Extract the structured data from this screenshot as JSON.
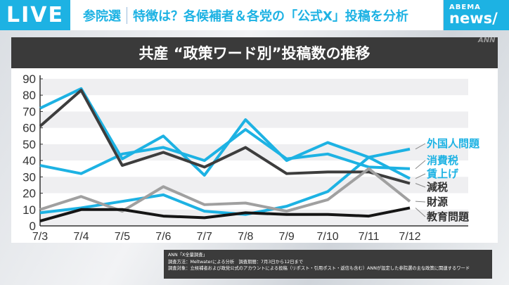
{
  "header": {
    "live": "LIVE",
    "headline_a": "参院選",
    "headline_b": "特徴は？各候補者＆各党の「公式X」投稿を分析",
    "logo_top": "ABEMA",
    "logo_bottom": "news/",
    "watermark": "ANN"
  },
  "chart_data": {
    "type": "line",
    "title": "共産 “政策ワード別”投稿数の推移",
    "categories": [
      "7/3",
      "7/4",
      "7/5",
      "7/6",
      "7/7",
      "7/8",
      "7/9",
      "7/10",
      "7/11",
      "7/12"
    ],
    "ylim": [
      0,
      90
    ],
    "yticks": [
      "0",
      "10",
      "20",
      "30",
      "40",
      "50",
      "60",
      "70",
      "80",
      "90"
    ],
    "grid": "horizontal bands",
    "legend": "right, labels at line ends",
    "series": [
      {
        "name": "外国人問題",
        "color": "#1db2e3",
        "values": [
          8,
          11,
          15,
          19,
          9,
          7,
          12,
          21,
          42,
          47
        ]
      },
      {
        "name": "消費税",
        "color": "#1db2e3",
        "values": [
          37,
          32,
          44,
          48,
          40,
          59,
          41,
          44,
          36,
          35
        ]
      },
      {
        "name": "賃上げ",
        "color": "#1db2e3",
        "values": [
          72,
          84,
          41,
          55,
          31,
          65,
          40,
          51,
          42,
          29
        ]
      },
      {
        "name": "減税",
        "color": "#3d3d3d",
        "values": [
          61,
          83,
          37,
          45,
          36,
          48,
          32,
          33,
          33,
          26
        ]
      },
      {
        "name": "財源",
        "color": "#a0a0a0",
        "values": [
          10,
          18,
          9,
          24,
          13,
          14,
          9,
          16,
          35,
          15
        ]
      },
      {
        "name": "教育問題",
        "color": "#151515",
        "values": [
          3,
          10,
          10,
          6,
          5,
          8,
          7,
          7,
          6,
          11
        ]
      }
    ]
  },
  "source": {
    "line1": "ANN「X全量調査」",
    "line2": "調査方法：Meltwaterによる分析　調査期間：7月3日から12日まで",
    "line3": "調査対象：立候補者および政党公式のアカウントによる投稿（リポスト・引用ポスト・返信も含む）ANNが設定した参院選の主な政策に関連するワード"
  }
}
